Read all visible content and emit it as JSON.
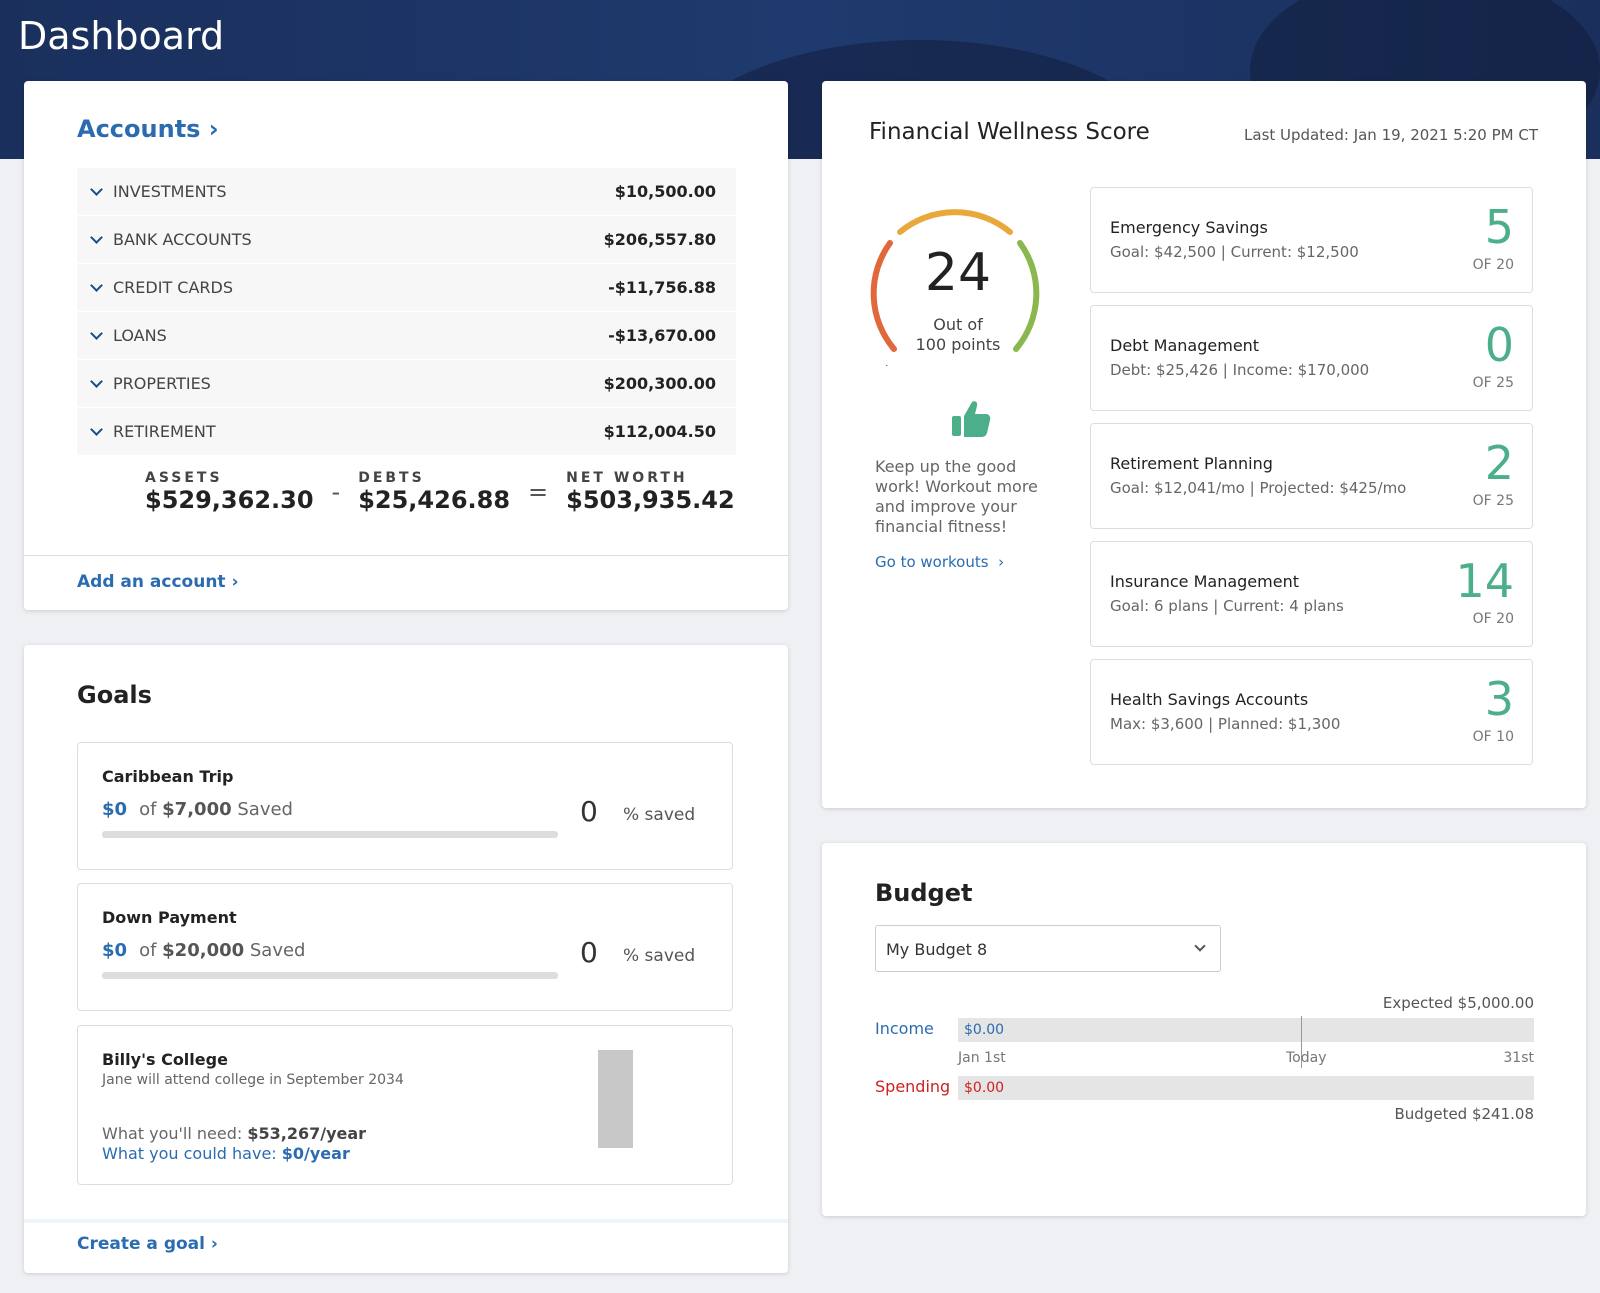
{
  "page": {
    "title": "Dashboard"
  },
  "accounts": {
    "title": "Accounts",
    "rows": [
      {
        "label": "INVESTMENTS",
        "amount": "$10,500.00"
      },
      {
        "label": "BANK ACCOUNTS",
        "amount": "$206,557.80"
      },
      {
        "label": "CREDIT CARDS",
        "amount": "-$11,756.88"
      },
      {
        "label": "LOANS",
        "amount": "-$13,670.00"
      },
      {
        "label": "PROPERTIES",
        "amount": "$200,300.00"
      },
      {
        "label": "RETIREMENT",
        "amount": "$112,004.50"
      }
    ],
    "totals": {
      "assets_label": "ASSETS",
      "assets": "$529,362.30",
      "minus": "-",
      "debts_label": "DEBTS",
      "debts": "$25,426.88",
      "equals": "=",
      "net_label": "NET WORTH",
      "net": "$503,935.42"
    },
    "add_link": "Add an account"
  },
  "goals": {
    "title": "Goals",
    "items": [
      {
        "name": "Caribbean Trip",
        "current": "$0",
        "of": "of",
        "target": "$7,000",
        "saved_word": "Saved",
        "percent": "0",
        "percent_label": "% saved",
        "progress": 0
      },
      {
        "name": "Down Payment",
        "current": "$0",
        "of": "of",
        "target": "$20,000",
        "saved_word": "Saved",
        "percent": "0",
        "percent_label": "% saved",
        "progress": 0
      }
    ],
    "college": {
      "name": "Billy's College",
      "subtitle": "Jane will attend college in September 2034",
      "need_label": "What you'll need:",
      "need_value": "$53,267/year",
      "could_label": "What you could have:",
      "could_value": "$0/year"
    },
    "create_link": "Create a goal"
  },
  "wellness": {
    "title": "Financial Wellness Score",
    "last_updated": "Last Updated: Jan 19, 2021 5:20 PM CT",
    "score": "24",
    "score_label_1": "Out of",
    "score_label_2": "100 points",
    "score_value": 24,
    "score_max": 100,
    "message": "Keep up the good work! Workout more and improve your financial fitness!",
    "workouts_link": "Go to workouts",
    "categories": [
      {
        "name": "Emergency Savings",
        "detail": "Goal: $42,500 | Current: $12,500",
        "score": "5",
        "of": "OF 20"
      },
      {
        "name": "Debt Management",
        "detail": "Debt: $25,426 | Income: $170,000",
        "score": "0",
        "of": "OF 25"
      },
      {
        "name": "Retirement Planning",
        "detail": "Goal: $12,041/mo | Projected: $425/mo",
        "score": "2",
        "of": "OF 25"
      },
      {
        "name": "Insurance Management",
        "detail": "Goal: 6 plans | Current: 4 plans",
        "score": "14",
        "of": "OF 20"
      },
      {
        "name": "Health Savings Accounts",
        "detail": "Max: $3,600 | Planned: $1,300",
        "score": "3",
        "of": "OF 10"
      }
    ],
    "colors": {
      "accent": "#4caf8a",
      "gauge_low": "#e0683a",
      "gauge_mid": "#e8a93a",
      "gauge_high": "#8ab84e"
    }
  },
  "budget": {
    "title": "Budget",
    "selected": "My Budget 8",
    "expected": "Expected $5,000.00",
    "income_label": "Income",
    "income_value": "$0.00",
    "spending_label": "Spending",
    "spending_value": "$0.00",
    "axis_start": "Jan 1st",
    "axis_mid": "Today",
    "axis_end": "31st",
    "budgeted": "Budgeted $241.08",
    "colors": {
      "income": "#2b6cb0",
      "spending": "#cc2222"
    }
  }
}
